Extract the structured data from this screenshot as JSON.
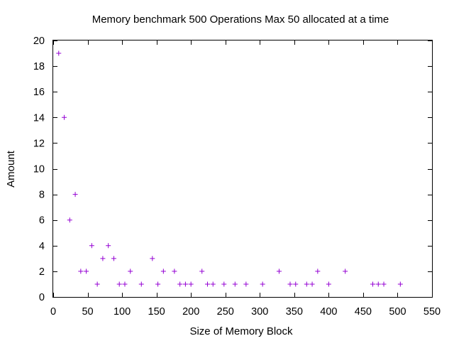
{
  "chart_data": {
    "type": "scatter",
    "title": "Memory benchmark 500 Operations Max 50 allocated at a time",
    "xlabel": "Size of Memory Block",
    "ylabel": "Amount",
    "xlim": [
      0,
      550
    ],
    "ylim": [
      0,
      20
    ],
    "xticks": [
      0,
      50,
      100,
      150,
      200,
      250,
      300,
      350,
      400,
      450,
      500,
      550
    ],
    "yticks": [
      0,
      2,
      4,
      6,
      8,
      10,
      12,
      14,
      16,
      18,
      20
    ],
    "xtick_labels": [
      "0",
      "50",
      "100",
      "150",
      "200",
      "250",
      "300",
      "350",
      "400",
      "450",
      "500",
      "550"
    ],
    "ytick_labels": [
      "0",
      "2",
      "4",
      "6",
      "8",
      "10",
      "12",
      "14",
      "16",
      "18",
      "20"
    ],
    "marker": "+",
    "color": "#9400d3",
    "grid": false,
    "series": [
      {
        "points": [
          [
            8,
            19
          ],
          [
            16,
            14
          ],
          [
            24,
            6
          ],
          [
            32,
            8
          ],
          [
            40,
            2
          ],
          [
            48,
            2
          ],
          [
            56,
            4
          ],
          [
            64,
            1
          ],
          [
            72,
            3
          ],
          [
            80,
            4
          ],
          [
            88,
            3
          ],
          [
            96,
            1
          ],
          [
            104,
            1
          ],
          [
            112,
            2
          ],
          [
            128,
            1
          ],
          [
            144,
            3
          ],
          [
            152,
            1
          ],
          [
            160,
            2
          ],
          [
            176,
            2
          ],
          [
            184,
            1
          ],
          [
            192,
            1
          ],
          [
            200,
            1
          ],
          [
            216,
            2
          ],
          [
            224,
            1
          ],
          [
            232,
            1
          ],
          [
            248,
            1
          ],
          [
            264,
            1
          ],
          [
            280,
            1
          ],
          [
            304,
            1
          ],
          [
            328,
            2
          ],
          [
            344,
            1
          ],
          [
            352,
            1
          ],
          [
            368,
            1
          ],
          [
            376,
            1
          ],
          [
            384,
            2
          ],
          [
            400,
            1
          ],
          [
            424,
            2
          ],
          [
            464,
            1
          ],
          [
            472,
            1
          ],
          [
            480,
            1
          ],
          [
            504,
            1
          ]
        ]
      }
    ]
  }
}
